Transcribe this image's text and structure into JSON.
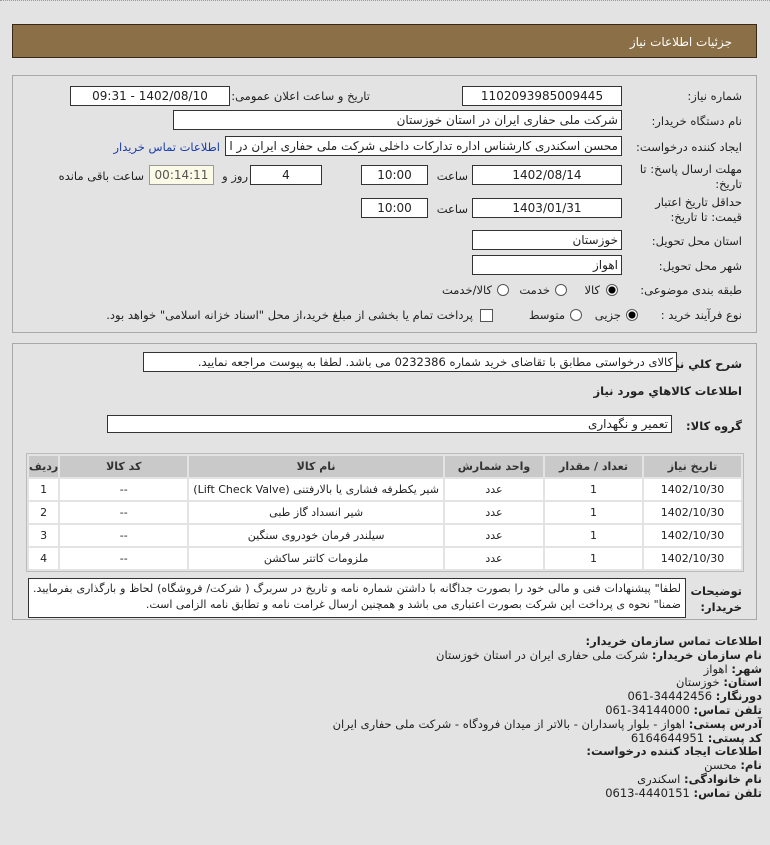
{
  "header": {
    "title": "جزئیات اطلاعات نیاز"
  },
  "form": {
    "need_number_label": "شماره نیاز:",
    "need_number": "1102093985009445",
    "announce_label": "تاریخ و ساعت اعلان عمومی:",
    "announce_value": "1402/08/10 - 09:31",
    "buyer_label": "نام دستگاه خریدار:",
    "buyer_value": "شرکت ملی حفاری ایران در استان خوزستان",
    "creator_label": "ایجاد کننده درخواست:",
    "creator_value": "محسن اسکندری کارشناس اداره تدارکات داخلی  شرکت ملی حفاری ایران در ا",
    "contact_link": "اطلاعات تماس خریدار",
    "deadline_label": "مهلت ارسال پاسخ: تا تاریخ:",
    "deadline_date": "1402/08/14",
    "time_label": "ساعت",
    "deadline_time": "10:00",
    "days": "4",
    "days_label": "روز و",
    "remaining": "00:14:11",
    "remaining_label": "ساعت باقی مانده",
    "validity_label": "حداقل تاریخ اعتبار قیمت: تا تاریخ:",
    "validity_date": "1403/01/31",
    "validity_time": "10:00",
    "province_label": "استان محل تحویل:",
    "province_value": "خوزستان",
    "city_label": "شهر محل تحویل:",
    "city_value": "اهواز",
    "category_label": "طبقه بندی موضوعی:",
    "category_options": [
      "کالا",
      "خدمت",
      "کالا/خدمت"
    ],
    "category_selected": "کالا",
    "process_label": "نوع فرآیند خرید :",
    "process_options": [
      "جزیی",
      "متوسط"
    ],
    "process_selected": "جزیی",
    "treasury_text": "پرداخت تمام یا بخشی از مبلغ خرید،از محل \"اسناد خزانه اسلامی\" خواهد بود.",
    "treasury_checked": false
  },
  "details": {
    "desc_label": "شرح کلي نياز:",
    "desc_value": "کالای درخواستی مطابق با تقاضای خرید شماره 0232386 می باشد. لطفا به پیوست مراجعه نمایید.",
    "goods_heading": "اطلاعات کالاهاي مورد نياز",
    "group_label": "گروه کالا:",
    "group_value": "تعمیر و نگهداری",
    "table": {
      "headers": [
        "ردیف",
        "کد کالا",
        "نام کالا",
        "واحد شمارش",
        "تعداد / مقدار",
        "تاریخ نیاز"
      ],
      "rows": [
        [
          "1",
          "--",
          "شیر یکطرفه فشاری یا بالارفتنی (Lift Check Valve)",
          "عدد",
          "1",
          "1402/10/30"
        ],
        [
          "2",
          "--",
          "شیر انسداد گاز طبی",
          "عدد",
          "1",
          "1402/10/30"
        ],
        [
          "3",
          "--",
          "سیلندر فرمان خودروی سنگین",
          "عدد",
          "1",
          "1402/10/30"
        ],
        [
          "4",
          "--",
          "ملزومات کاتتر ساکشن",
          "عدد",
          "1",
          "1402/10/30"
        ]
      ]
    },
    "notes_label": "توضیحات خریدار:",
    "notes_value": "لطفا\" پیشنهادات فنی و مالی خود را بصورت جداگانه با داشتن شماره نامه و تاریخ در سربرگ ( شرکت/ فروشگاه) لحاظ و بارگذاری بفرمایید. ضمنا\" نحوه ی پرداخت این شرکت بصورت اعتباری می باشد و همچنین ارسال غرامت نامه و تطابق نامه الزامی است."
  },
  "contact": {
    "heading": "اطلاعات تماس سازمان خریدار:",
    "org_label": "نام سازمان خریدار:",
    "org": "شرکت ملی حفاری ایران در استان خوزستان",
    "city_label": "شهر:",
    "city": "اهواز",
    "province_label": "استان:",
    "province": "خوزستان",
    "fax_label": "دورنگار:",
    "fax": "061-34442456",
    "phone_label": "تلفن تماس:",
    "phone": "061-34144000",
    "address_label": "آدرس پستی:",
    "address": "اهواز - بلوار پاسداران - بالاتر از میدان فرودگاه - شرکت ملی حفاری ایران",
    "postal_label": "کد پستی:",
    "postal": "6164644951",
    "creator_heading": "اطلاعات ایجاد کننده درخواست:",
    "name_label": "نام:",
    "name": "محسن",
    "family_label": "نام خانوادگی:",
    "family": "اسکندری",
    "creator_phone_label": "تلفن تماس:",
    "creator_phone": "0613-4440151"
  }
}
